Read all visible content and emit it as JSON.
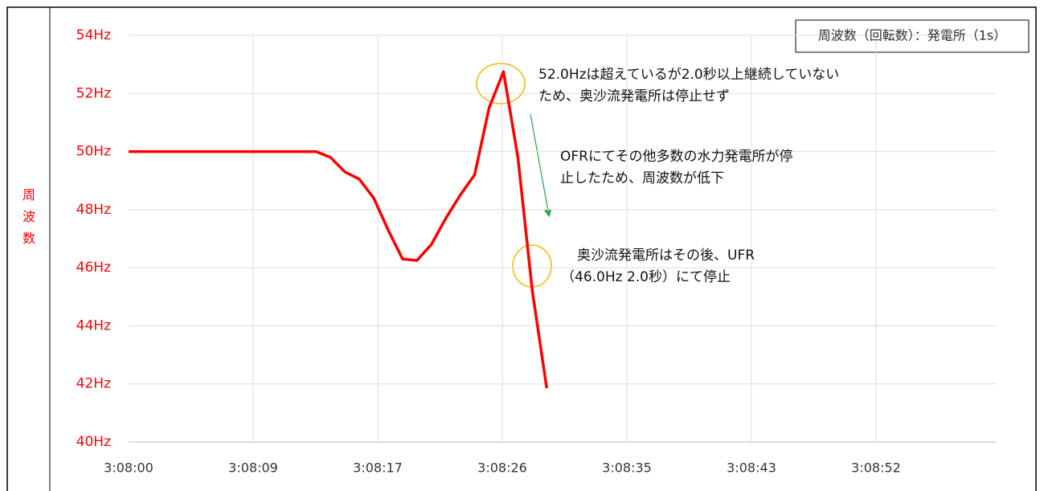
{
  "chart_data": {
    "type": "line",
    "y_axis_label": "周波数",
    "x": [
      0,
      13,
      14,
      15,
      16,
      17,
      18,
      19,
      20,
      21,
      22,
      23,
      24,
      25,
      26,
      27,
      28,
      29
    ],
    "series": [
      {
        "name": "周波数（回転数）：発電所（1s）",
        "color": "#ff0000",
        "values": [
          50,
          50,
          49.8,
          49.3,
          49.05,
          48.4,
          47.3,
          46.3,
          46.25,
          46.8,
          47.7,
          48.5,
          49.2,
          51.5,
          52.75,
          49.8,
          45.2,
          41.85
        ]
      }
    ],
    "xlim": [
      0,
      60.2
    ],
    "xticks": [
      {
        "value": 0,
        "label": "3:08:00"
      },
      {
        "value": 8.64,
        "label": "3:08:09"
      },
      {
        "value": 17.28,
        "label": "3:08:17"
      },
      {
        "value": 25.92,
        "label": "3:08:26"
      },
      {
        "value": 34.56,
        "label": "3:08:35"
      },
      {
        "value": 43.2,
        "label": "3:08:43"
      },
      {
        "value": 51.84,
        "label": "3:08:52"
      }
    ],
    "ylim": [
      40,
      54
    ],
    "yticks": [
      {
        "value": 40,
        "label": "40Hz"
      },
      {
        "value": 42,
        "label": "42Hz"
      },
      {
        "value": 44,
        "label": "44Hz"
      },
      {
        "value": 46,
        "label": "46Hz"
      },
      {
        "value": 48,
        "label": "48Hz"
      },
      {
        "value": 50,
        "label": "50Hz"
      },
      {
        "value": 52,
        "label": "52Hz"
      },
      {
        "value": 54,
        "label": "54Hz"
      }
    ],
    "grid": true,
    "legend": "top-right",
    "annotations": [
      {
        "lines": [
          "52.0Hzは超えているが2.0秒以上継続していない",
          "ため、奥沙流発電所は停止せず"
        ]
      },
      {
        "lines": [
          "OFRにてその他多数の水力発電所が停",
          "止したため、周波数が低下"
        ]
      },
      {
        "lines": [
          "奥沙流発電所はその後、UFR",
          "（46.0Hz 2.0秒）にて停止"
        ]
      }
    ]
  }
}
